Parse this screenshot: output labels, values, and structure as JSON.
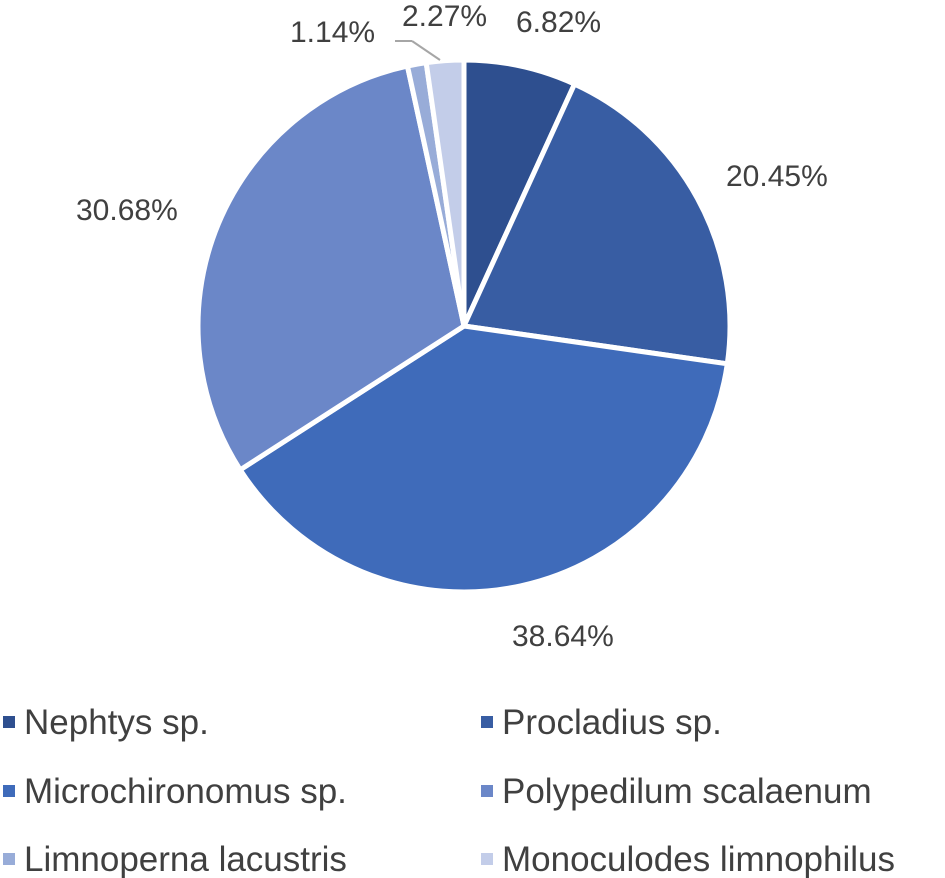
{
  "chart_data": {
    "type": "pie",
    "title": "",
    "legend_position": "bottom",
    "slices": [
      {
        "name": "Nephtys sp.",
        "value": 6.82,
        "label": "6.82%",
        "color": "#2e4f8f"
      },
      {
        "name": "Procladius sp.",
        "value": 20.45,
        "label": "20.45%",
        "color": "#385da3"
      },
      {
        "name": "Microchironomus sp.",
        "value": 38.64,
        "label": "38.64%",
        "color": "#3f6bba"
      },
      {
        "name": "Polypedilum scalaenum",
        "value": 30.68,
        "label": "30.68%",
        "color": "#6b87c8"
      },
      {
        "name": "Limnoperna lacustris",
        "value": 1.14,
        "label": "1.14%",
        "color": "#98acd8"
      },
      {
        "name": "Monoculodes limnophilus",
        "value": 2.27,
        "label": "2.27%",
        "color": "#c3cde9"
      }
    ]
  }
}
